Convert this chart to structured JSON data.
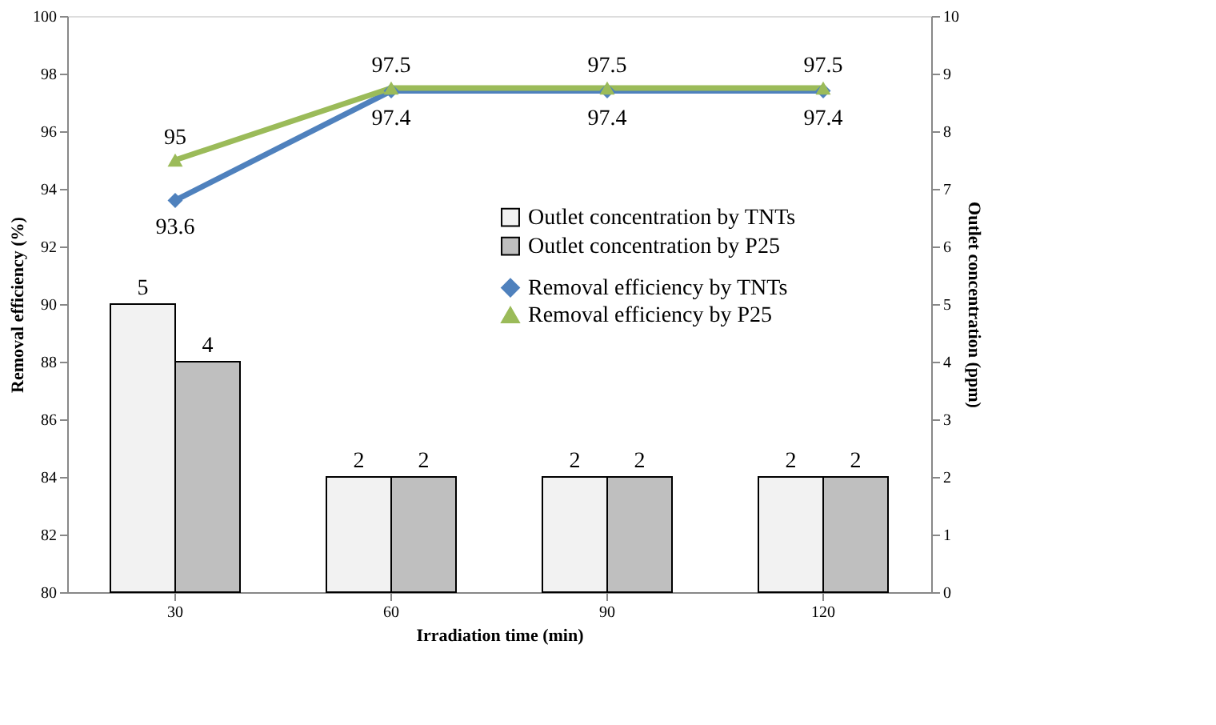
{
  "chart_data": {
    "type": "bar",
    "xlabel": "Irradiation  time (min)",
    "ylabel": "Removal efficiency (%)",
    "y2label": "Outlet concentration (ppm)",
    "categories": [
      "30",
      "60",
      "90",
      "120"
    ],
    "series": [
      {
        "name": "Outlet concentration by TNTs",
        "axis": "y2",
        "color": "#f2f2f2",
        "values": [
          5,
          2,
          2,
          2
        ]
      },
      {
        "name": "Outlet concentration by  P25",
        "axis": "y2",
        "color": "#bfbfbf",
        "values": [
          4,
          2,
          2,
          2
        ]
      },
      {
        "name": "Removal efficiency by TNTs",
        "type": "line",
        "axis": "y",
        "color": "#4f81bd",
        "marker": "diamond",
        "values": [
          93.6,
          97.4,
          97.4,
          97.4
        ]
      },
      {
        "name": "Removal efficiency by P25",
        "type": "line",
        "axis": "y",
        "color": "#9bbb59",
        "marker": "triangle",
        "values": [
          95,
          97.5,
          97.5,
          97.5
        ]
      }
    ],
    "ylim": [
      80,
      100
    ],
    "yticks": [
      80,
      82,
      84,
      86,
      88,
      90,
      92,
      94,
      96,
      98,
      100
    ],
    "y2lim": [
      0,
      10
    ],
    "y2ticks": [
      0,
      1,
      2,
      3,
      4,
      5,
      6,
      7,
      8,
      9,
      10
    ],
    "data_labels": true,
    "grid": false,
    "legend": "right",
    "line_style": "solid"
  }
}
